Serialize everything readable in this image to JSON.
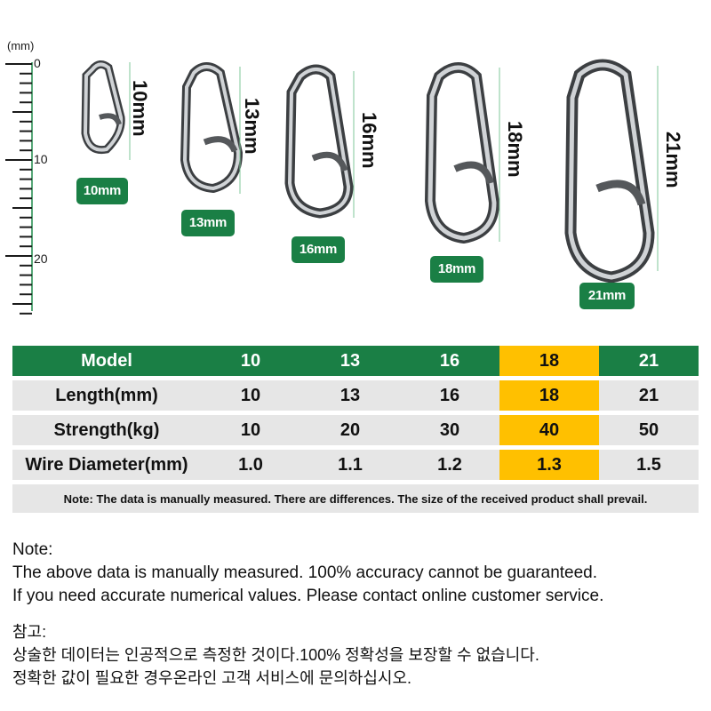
{
  "ruler": {
    "unit": "(mm)",
    "labels": [
      "0",
      "10",
      "20"
    ]
  },
  "pins": [
    {
      "size_label": "10mm",
      "badge": "10mm"
    },
    {
      "size_label": "13mm",
      "badge": "13mm"
    },
    {
      "size_label": "16mm",
      "badge": "16mm"
    },
    {
      "size_label": "18mm",
      "badge": "18mm"
    },
    {
      "size_label": "21mm",
      "badge": "21mm"
    }
  ],
  "table": {
    "header": [
      "Model",
      "10",
      "13",
      "16",
      "18",
      "21"
    ],
    "rows": [
      {
        "label": "Length(mm)",
        "values": [
          "10",
          "13",
          "16",
          "18",
          "21"
        ]
      },
      {
        "label": "Strength(kg)",
        "values": [
          "10",
          "20",
          "30",
          "40",
          "50"
        ]
      },
      {
        "label": "Wire Diameter(mm)",
        "values": [
          "1.0",
          "1.1",
          "1.2",
          "1.3",
          "1.5"
        ]
      }
    ],
    "highlight_column": 4,
    "footnote": "Note: The data is manually measured. There are differences. The size of the received product shall prevail."
  },
  "notes_en": {
    "title": "Note:",
    "line1": "The above data is manually measured. 100% accuracy cannot be guaranteed.",
    "line2": "If you need accurate numerical values. Please contact online customer service."
  },
  "notes_ko": {
    "title": "참고:",
    "line1": "상술한 데이터는 인공적으로 측정한 것이다.100% 정확성을 보장할 수 없습니다.",
    "line2": "정확한 값이 필요한 경우온라인 고객 서비스에 문의하십시오."
  },
  "colors": {
    "green": "#1a7f45",
    "highlight": "#ffc000",
    "row_bg": "#e6e6e6"
  }
}
